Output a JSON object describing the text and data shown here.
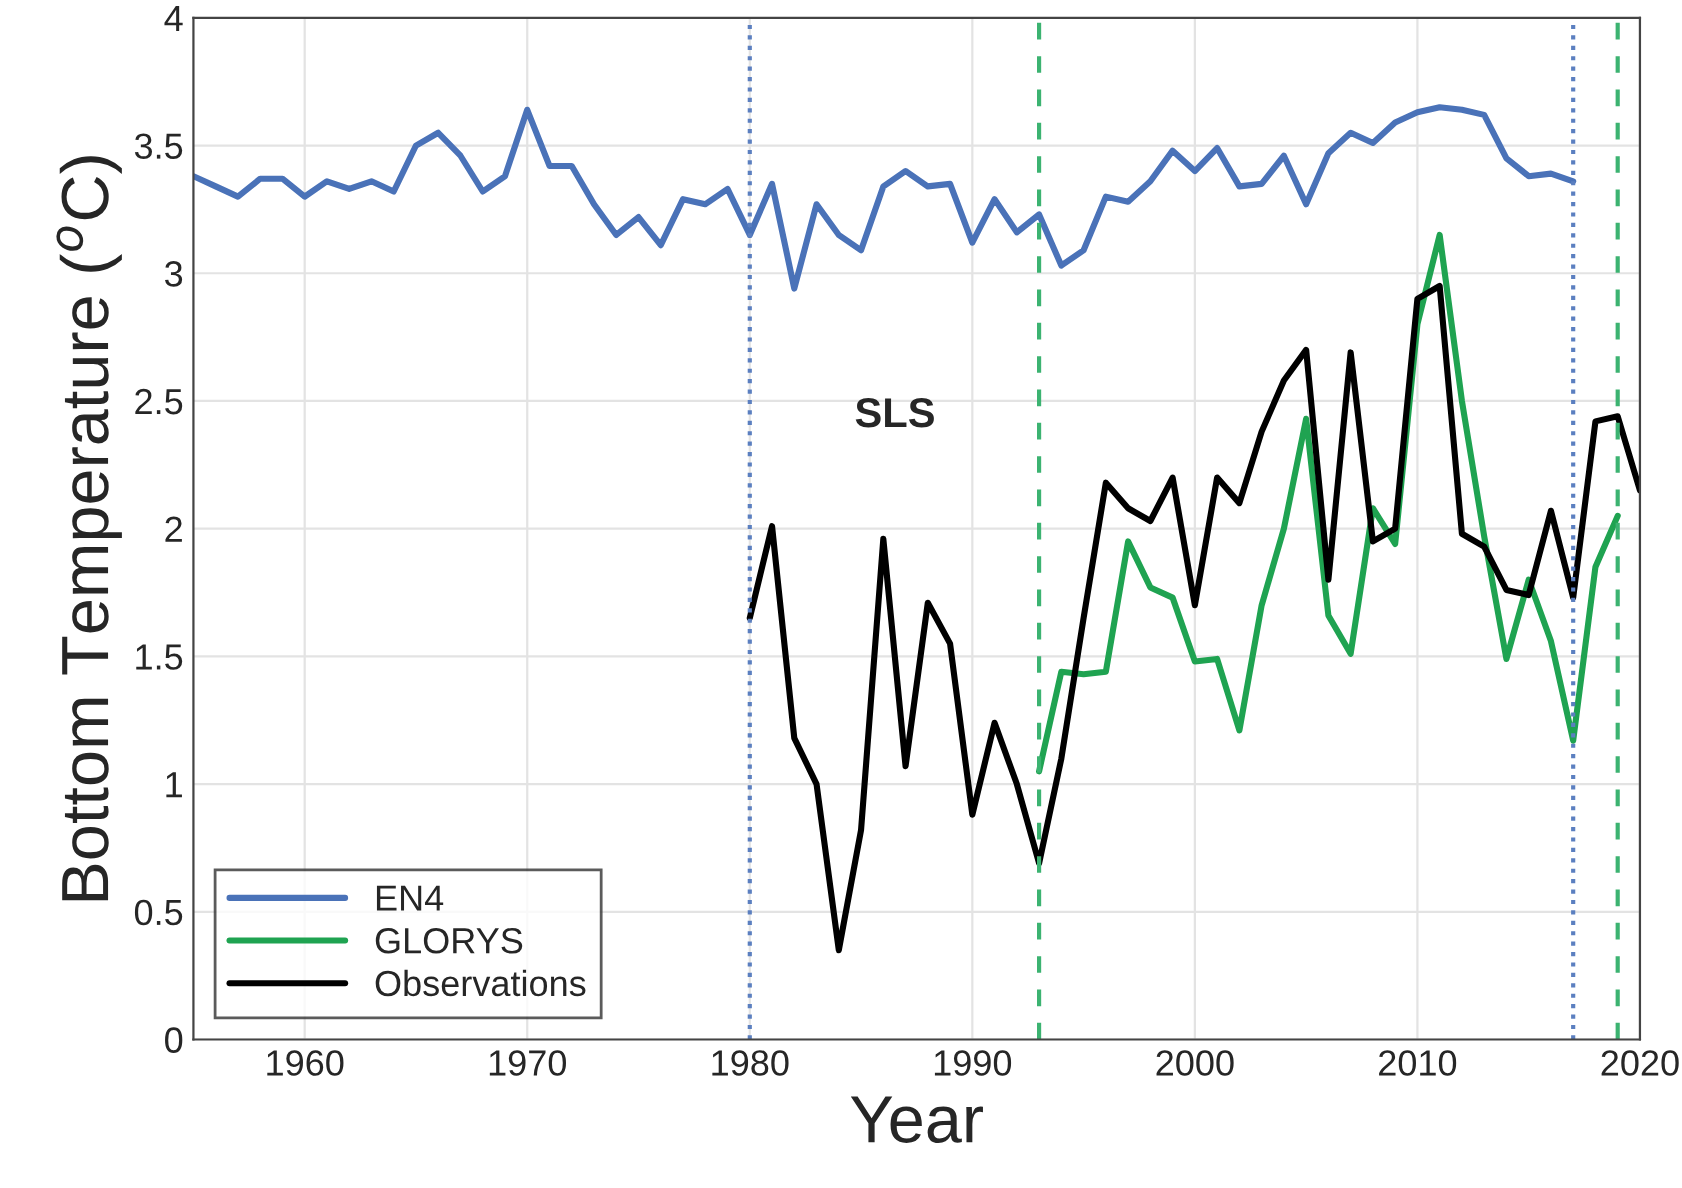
{
  "chart_data": {
    "type": "line",
    "xlabel": "Year",
    "ylabel": "Bottom Temperature ($^{o}$C)",
    "annotations": [
      "SLS"
    ],
    "xlim": [
      1955,
      2020
    ],
    "xticks": [
      1960,
      1970,
      1980,
      1990,
      2000,
      2010,
      2020
    ],
    "ylim": [
      0,
      4
    ],
    "yticks": [
      0,
      0.5,
      1,
      1.5,
      2,
      2.5,
      3,
      3.5,
      4
    ],
    "grid": true,
    "legend": "bottom left",
    "line_style": "solid",
    "series": [
      {
        "name": "EN4",
        "color": "#4a72b8",
        "x": [
          1955,
          1956,
          1957,
          1958,
          1959,
          1960,
          1961,
          1962,
          1963,
          1964,
          1965,
          1966,
          1967,
          1968,
          1969,
          1970,
          1971,
          1972,
          1973,
          1974,
          1975,
          1976,
          1977,
          1978,
          1979,
          1980,
          1981,
          1982,
          1983,
          1984,
          1985,
          1986,
          1987,
          1988,
          1989,
          1990,
          1991,
          1992,
          1993,
          1994,
          1995,
          1996,
          1997,
          1998,
          1999,
          2000,
          2001,
          2002,
          2003,
          2004,
          2005,
          2006,
          2007,
          2008,
          2009,
          2010,
          2011,
          2012,
          2013,
          2014,
          2015,
          2016,
          2017
        ],
        "values": [
          3.38,
          3.34,
          3.3,
          3.37,
          3.37,
          3.3,
          3.36,
          3.33,
          3.36,
          3.32,
          3.5,
          3.55,
          3.46,
          3.32,
          3.38,
          3.64,
          3.42,
          3.42,
          3.27,
          3.15,
          3.22,
          3.11,
          3.29,
          3.27,
          3.33,
          3.15,
          3.35,
          2.94,
          3.27,
          3.15,
          3.09,
          3.34,
          3.4,
          3.34,
          3.35,
          3.12,
          3.29,
          3.16,
          3.23,
          3.03,
          3.09,
          3.3,
          3.28,
          3.36,
          3.48,
          3.4,
          3.49,
          3.34,
          3.35,
          3.46,
          3.27,
          3.47,
          3.55,
          3.51,
          3.59,
          3.63,
          3.65,
          3.64,
          3.62,
          3.45,
          3.38,
          3.39,
          3.36
        ]
      },
      {
        "name": "GLORYS",
        "color": "#1fa351",
        "x": [
          1993,
          1994,
          1995,
          1996,
          1997,
          1998,
          1999,
          2000,
          2001,
          2002,
          2003,
          2004,
          2005,
          2006,
          2007,
          2008,
          2009,
          2010,
          2011,
          2012,
          2013,
          2014,
          2015,
          2016,
          2017,
          2018,
          2019
        ],
        "values": [
          1.05,
          1.44,
          1.43,
          1.44,
          1.95,
          1.77,
          1.73,
          1.48,
          1.49,
          1.21,
          1.7,
          2.0,
          2.43,
          1.66,
          1.51,
          2.08,
          1.94,
          2.8,
          3.15,
          2.5,
          1.97,
          1.49,
          1.8,
          1.56,
          1.17,
          1.85,
          2.05
        ]
      },
      {
        "name": "Observations",
        "color": "#000000",
        "x": [
          1980,
          1981,
          1982,
          1983,
          1984,
          1985,
          1986,
          1987,
          1988,
          1989,
          1990,
          1991,
          1992,
          1993,
          1994,
          1995,
          1996,
          1997,
          1998,
          1999,
          2000,
          2001,
          2002,
          2003,
          2004,
          2005,
          2006,
          2007,
          2008,
          2009,
          2010,
          2011,
          2012,
          2013,
          2014,
          2015,
          2016,
          2017,
          2018,
          2019,
          2020
        ],
        "values": [
          1.65,
          2.01,
          1.18,
          1.0,
          0.35,
          0.82,
          1.96,
          1.07,
          1.71,
          1.55,
          0.88,
          1.24,
          1.0,
          0.69,
          1.1,
          1.65,
          2.18,
          2.08,
          2.03,
          2.2,
          1.7,
          2.2,
          2.1,
          2.38,
          2.58,
          2.7,
          1.8,
          2.69,
          1.95,
          2.0,
          2.9,
          2.95,
          1.98,
          1.93,
          1.76,
          1.74,
          2.07,
          1.73,
          2.42,
          2.44,
          2.15
        ]
      }
    ],
    "ref_lines": [
      {
        "axis": "x",
        "value": 1980,
        "color": "#5b7fc0",
        "line_style": "dotted"
      },
      {
        "axis": "x",
        "value": 2017,
        "color": "#5b7fc0",
        "line_style": "dotted"
      },
      {
        "axis": "x",
        "value": 1993,
        "color": "#3cb371",
        "line_style": "dashed"
      },
      {
        "axis": "x",
        "value": 2019,
        "color": "#3cb371",
        "line_style": "dashed"
      }
    ]
  }
}
